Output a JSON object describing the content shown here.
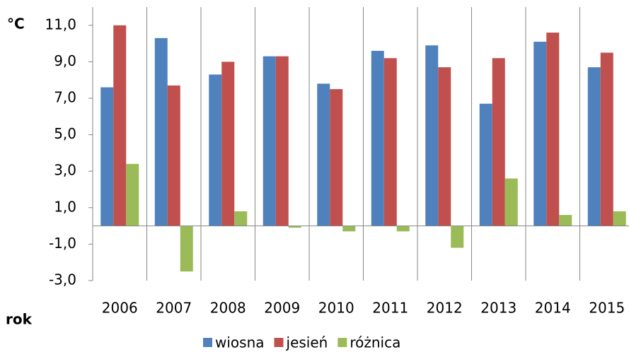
{
  "chart_data": {
    "type": "bar",
    "y_label": "°C",
    "x_label": "rok",
    "categories": [
      "2006",
      "2007",
      "2008",
      "2009",
      "2010",
      "2011",
      "2012",
      "2013",
      "2014",
      "2015"
    ],
    "series": [
      {
        "name": "wiosna",
        "color": "#4f81bd",
        "values": [
          7.6,
          10.3,
          8.3,
          9.3,
          7.8,
          9.6,
          9.9,
          6.7,
          10.1,
          8.7
        ]
      },
      {
        "name": "jesień",
        "color": "#c0504d",
        "values": [
          11.0,
          7.7,
          9.0,
          9.3,
          7.5,
          9.2,
          8.7,
          9.2,
          10.6,
          9.5
        ]
      },
      {
        "name": "różnica",
        "color": "#9bbb59",
        "values": [
          3.4,
          -2.5,
          0.8,
          -0.1,
          -0.3,
          -0.3,
          -1.2,
          2.6,
          0.6,
          0.8
        ]
      }
    ],
    "ylim": [
      -3,
      12
    ],
    "yticks": [
      {
        "value": -3,
        "label": "-3,0"
      },
      {
        "value": -1,
        "label": "-1,0"
      },
      {
        "value": 1,
        "label": "1,0"
      },
      {
        "value": 3,
        "label": "3,0"
      },
      {
        "value": 5,
        "label": "5,0"
      },
      {
        "value": 7,
        "label": "7,0"
      },
      {
        "value": 9,
        "label": "9,0"
      },
      {
        "value": 11,
        "label": "11,0"
      }
    ],
    "grid": true,
    "legend": "bottom"
  }
}
